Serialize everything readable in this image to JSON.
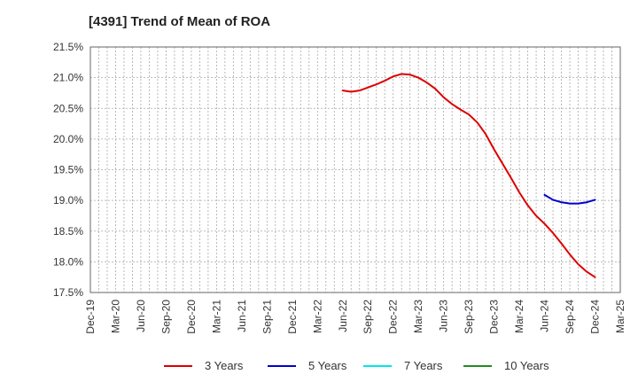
{
  "chart_data": {
    "type": "line",
    "title": "[4391]  Trend of Mean of ROA",
    "xlabel": "",
    "ylabel": "",
    "ylim": [
      17.5,
      21.5
    ],
    "y_ticks": [
      "17.5%",
      "18.0%",
      "18.5%",
      "19.0%",
      "19.5%",
      "20.0%",
      "20.5%",
      "21.0%",
      "21.5%"
    ],
    "x_ticks": [
      "Dec-19",
      "Mar-20",
      "Jun-20",
      "Sep-20",
      "Dec-20",
      "Mar-21",
      "Jun-21",
      "Sep-21",
      "Dec-21",
      "Mar-22",
      "Jun-22",
      "Sep-22",
      "Dec-22",
      "Mar-23",
      "Jun-23",
      "Sep-23",
      "Dec-23",
      "Mar-24",
      "Jun-24",
      "Sep-24",
      "Dec-24",
      "Mar-25"
    ],
    "grid": true,
    "legend_position": "bottom",
    "series": [
      {
        "name": "3 Years",
        "color": "#dd0000",
        "points": [
          [
            "Jun-22",
            20.79
          ],
          [
            "Jul-22",
            20.77
          ],
          [
            "Aug-22",
            20.79
          ],
          [
            "Sep-22",
            20.84
          ],
          [
            "Oct-22",
            20.89
          ],
          [
            "Nov-22",
            20.95
          ],
          [
            "Dec-22",
            21.02
          ],
          [
            "Jan-23",
            21.06
          ],
          [
            "Feb-23",
            21.05
          ],
          [
            "Mar-23",
            21.0
          ],
          [
            "Apr-23",
            20.92
          ],
          [
            "May-23",
            20.82
          ],
          [
            "Jun-23",
            20.68
          ],
          [
            "Jul-23",
            20.57
          ],
          [
            "Aug-23",
            20.48
          ],
          [
            "Sep-23",
            20.4
          ],
          [
            "Oct-23",
            20.27
          ],
          [
            "Nov-23",
            20.08
          ],
          [
            "Dec-23",
            19.83
          ],
          [
            "Jan-24",
            19.6
          ],
          [
            "Feb-24",
            19.37
          ],
          [
            "Mar-24",
            19.13
          ],
          [
            "Apr-24",
            18.92
          ],
          [
            "May-24",
            18.75
          ],
          [
            "Jun-24",
            18.62
          ],
          [
            "Jul-24",
            18.47
          ],
          [
            "Aug-24",
            18.3
          ],
          [
            "Sep-24",
            18.12
          ],
          [
            "Oct-24",
            17.96
          ],
          [
            "Nov-24",
            17.84
          ],
          [
            "Dec-24",
            17.75
          ]
        ]
      },
      {
        "name": "5 Years",
        "color": "#0000cc",
        "points": [
          [
            "Jun-24",
            19.09
          ],
          [
            "Jul-24",
            19.01
          ],
          [
            "Aug-24",
            18.97
          ],
          [
            "Sep-24",
            18.95
          ],
          [
            "Oct-24",
            18.95
          ],
          [
            "Nov-24",
            18.97
          ],
          [
            "Dec-24",
            19.01
          ]
        ]
      },
      {
        "name": "7 Years",
        "color": "#00e5ee",
        "points": []
      },
      {
        "name": "10 Years",
        "color": "#228b22",
        "points": []
      }
    ]
  }
}
